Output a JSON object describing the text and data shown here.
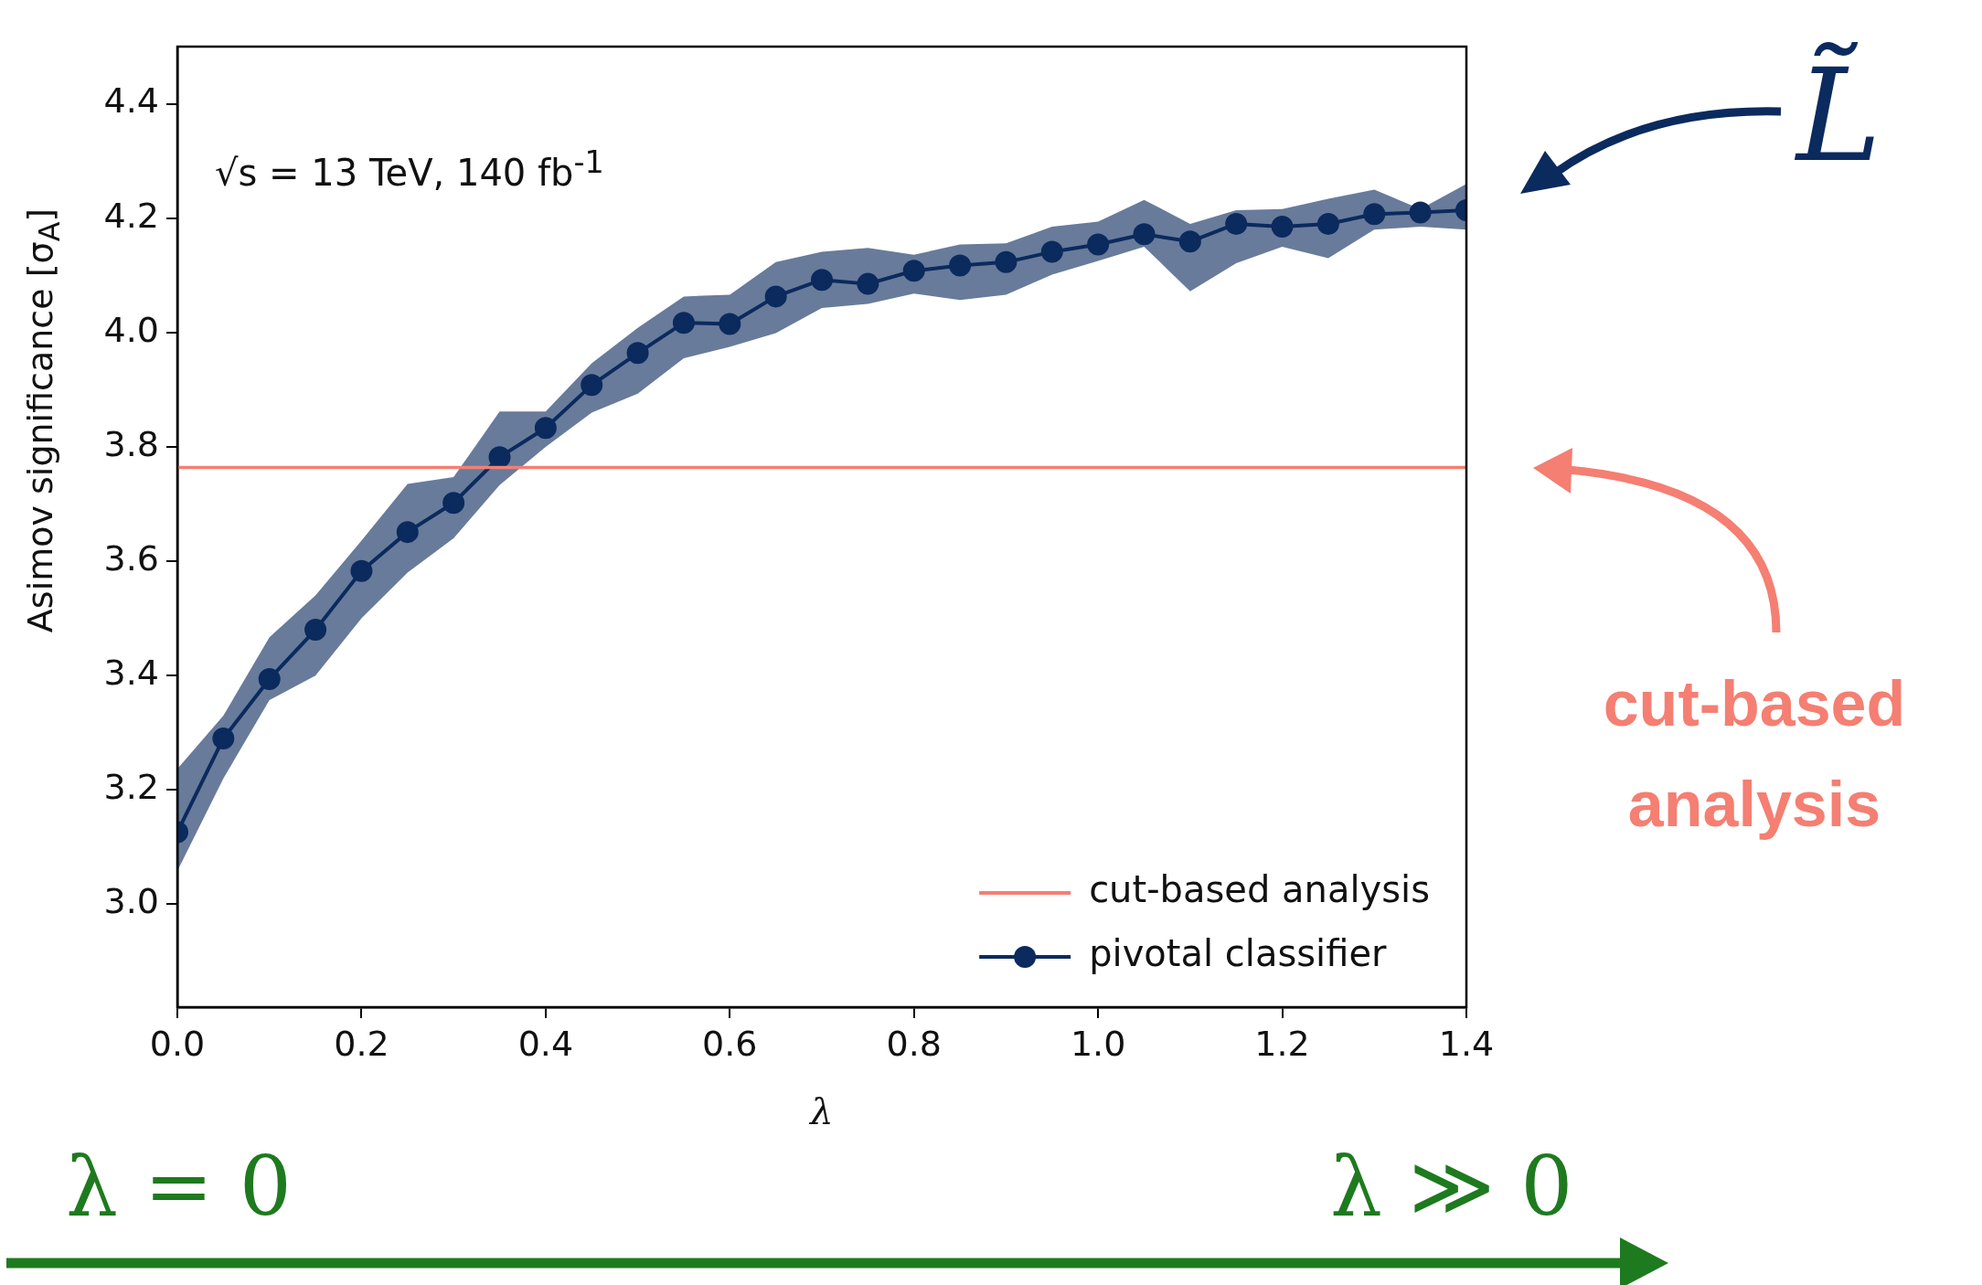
{
  "chart_data": {
    "type": "line",
    "xlabel": "λ",
    "ylabel": "Asimov significance [σ$_{A}$]",
    "x": [
      0,
      0.05,
      0.1,
      0.15,
      0.2,
      0.25,
      0.3,
      0.35,
      0.4,
      0.45,
      0.5,
      0.55,
      0.6,
      0.65,
      0.7,
      0.75,
      0.8,
      0.85,
      0.9,
      0.95,
      1.0,
      1.05,
      1.1,
      1.15,
      1.2,
      1.25,
      1.3,
      1.35,
      1.4
    ],
    "series": [
      {
        "name": "pivotal classifier",
        "color": "#0b2a5e",
        "values": [
          3.126,
          3.29,
          3.394,
          3.48,
          3.583,
          3.651,
          3.702,
          3.782,
          3.833,
          3.908,
          3.964,
          4.017,
          4.015,
          4.063,
          4.092,
          4.085,
          4.108,
          4.117,
          4.123,
          4.141,
          4.154,
          4.172,
          4.159,
          4.19,
          4.185,
          4.19,
          4.207,
          4.21,
          4.214
        ],
        "upper": [
          3.237,
          3.33,
          3.467,
          3.54,
          3.636,
          3.735,
          3.747,
          3.862,
          3.862,
          3.946,
          4.008,
          4.063,
          4.066,
          4.123,
          4.141,
          4.148,
          4.136,
          4.154,
          4.156,
          4.185,
          4.194,
          4.232,
          4.19,
          4.214,
          4.216,
          4.234,
          4.25,
          4.216,
          4.26
        ],
        "lower": [
          3.058,
          3.22,
          3.357,
          3.4,
          3.5,
          3.58,
          3.64,
          3.733,
          3.8,
          3.86,
          3.893,
          3.955,
          3.975,
          3.999,
          4.043,
          4.05,
          4.068,
          4.057,
          4.066,
          4.101,
          4.125,
          4.15,
          4.072,
          4.121,
          4.15,
          4.13,
          4.18,
          4.185,
          4.18
        ]
      }
    ],
    "xlim": [
      0,
      1.4
    ],
    "xticks": [
      {
        "value": 0,
        "label": "0.0"
      },
      0.2,
      0.4,
      0.6,
      0.8,
      {
        "value": 1,
        "label": "1.0"
      },
      1.2,
      1.4
    ],
    "ylim": [
      2.82,
      4.5
    ],
    "yticks": [
      {
        "value": 3,
        "label": "3.0"
      },
      3.2,
      3.4,
      3.6,
      3.8,
      {
        "value": 4,
        "label": "4.0"
      },
      4.2,
      4.4
    ],
    "ref_lines": [
      {
        "axis": "y",
        "value": 3.764,
        "label": "cut-based analysis",
        "color": "#f47f72"
      }
    ],
    "legend": "bottom right",
    "marker": "circle",
    "line_style": "solid",
    "grid": false,
    "annotations": [
      "√s = 13 TeV, 140 fb$^{-1}$",
      "L̃",
      "cut-based analysis",
      "λ = 0",
      "λ ≫ 0"
    ]
  }
}
